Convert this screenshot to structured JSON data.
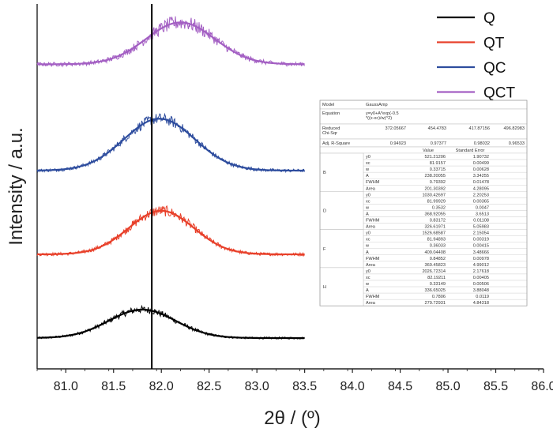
{
  "chart_data": {
    "type": "line",
    "xlabel": "2θ / (º)",
    "ylabel": "Intensity / a.u.",
    "xlim": [
      80.7,
      86.0
    ],
    "xticks": [
      "81.0",
      "81.5",
      "82.0",
      "82.5",
      "83.0",
      "83.5",
      "84.0",
      "84.5",
      "85.0",
      "85.5",
      "86.0"
    ],
    "yticks": false,
    "marker_line_x": 81.9,
    "data_x_range": [
      80.7,
      83.5
    ],
    "legend_position": "top-right",
    "series": [
      {
        "name": "Q",
        "color": "#000000",
        "offset": 0.0,
        "y0": 0.0,
        "xc": 81.8,
        "w": 0.35,
        "A": 0.34,
        "noise": 0.02
      },
      {
        "name": "QT",
        "color": "#e8402a",
        "offset": 1.0,
        "y0": 0.0,
        "xc": 82.0,
        "w": 0.34,
        "A": 0.52,
        "noise": 0.03
      },
      {
        "name": "QC",
        "color": "#2e4d9e",
        "offset": 2.0,
        "y0": 0.0,
        "xc": 81.98,
        "w": 0.37,
        "A": 0.62,
        "noise": 0.03
      },
      {
        "name": "QCT",
        "color": "#a35fc3",
        "offset": 3.27,
        "y0": 0.0,
        "xc": 82.2,
        "w": 0.36,
        "A": 0.5,
        "noise": 0.04
      }
    ],
    "fit_table": {
      "header": [
        [
          "Model",
          "GaussAmp",
          "",
          "",
          ""
        ],
        [
          "Equation",
          "y=y0+A*exp(-0.5\n*((x-xc)/w)^2)",
          "",
          "",
          ""
        ],
        [
          "Reduced\nChi-Sqr",
          "372.05667",
          "454.4783",
          "417.87156",
          "496.82983"
        ],
        [
          "Adj. R-Square",
          "0.94923",
          "0.97377",
          "0.98032",
          "0.96533"
        ]
      ],
      "column_headers": [
        "",
        "",
        "Value",
        "Standard Error"
      ],
      "groups": [
        {
          "name": "B",
          "rows": [
            [
              "y0",
              "521.21206",
              "1.90732"
            ],
            [
              "xc",
              "81.9157",
              "0.00499"
            ],
            [
              "w",
              "0.33715",
              "0.00628"
            ],
            [
              "A",
              "238.20055",
              "3.34255"
            ],
            [
              "FWHM",
              "0.79392",
              "0.01478"
            ],
            [
              "Area",
              "201.30392",
              "4.28095"
            ]
          ]
        },
        {
          "name": "D",
          "rows": [
            [
              "y0",
              "1030.42697",
              "2.20253"
            ],
            [
              "xc",
              "81.99929",
              "0.00365"
            ],
            [
              "w",
              "0.3532",
              "0.0047"
            ],
            [
              "A",
              "368.92055",
              "3.6513"
            ],
            [
              "FWHM",
              "0.83172",
              "0.01108"
            ],
            [
              "Area",
              "326.61971",
              "5.05983"
            ]
          ]
        },
        {
          "name": "F",
          "rows": [
            [
              "y0",
              "1526.68587",
              "2.15054"
            ],
            [
              "xc",
              "81.94893",
              "0.00319"
            ],
            [
              "w",
              "0.36033",
              "0.00415"
            ],
            [
              "A",
              "409.04408",
              "3.48666"
            ],
            [
              "FWHM",
              "0.84852",
              "0.00978"
            ],
            [
              "Area",
              "369.45823",
              "4.99012"
            ]
          ]
        },
        {
          "name": "H",
          "rows": [
            [
              "y0",
              "2026.72314",
              "2.17618"
            ],
            [
              "xc",
              "82.19211",
              "0.00405"
            ],
            [
              "w",
              "0.33149",
              "0.00506"
            ],
            [
              "A",
              "336.65025",
              "3.88048"
            ],
            [
              "FWHM",
              "0.7806",
              "0.0119"
            ],
            [
              "Area",
              "279.72931",
              "4.84318"
            ]
          ]
        }
      ]
    }
  }
}
